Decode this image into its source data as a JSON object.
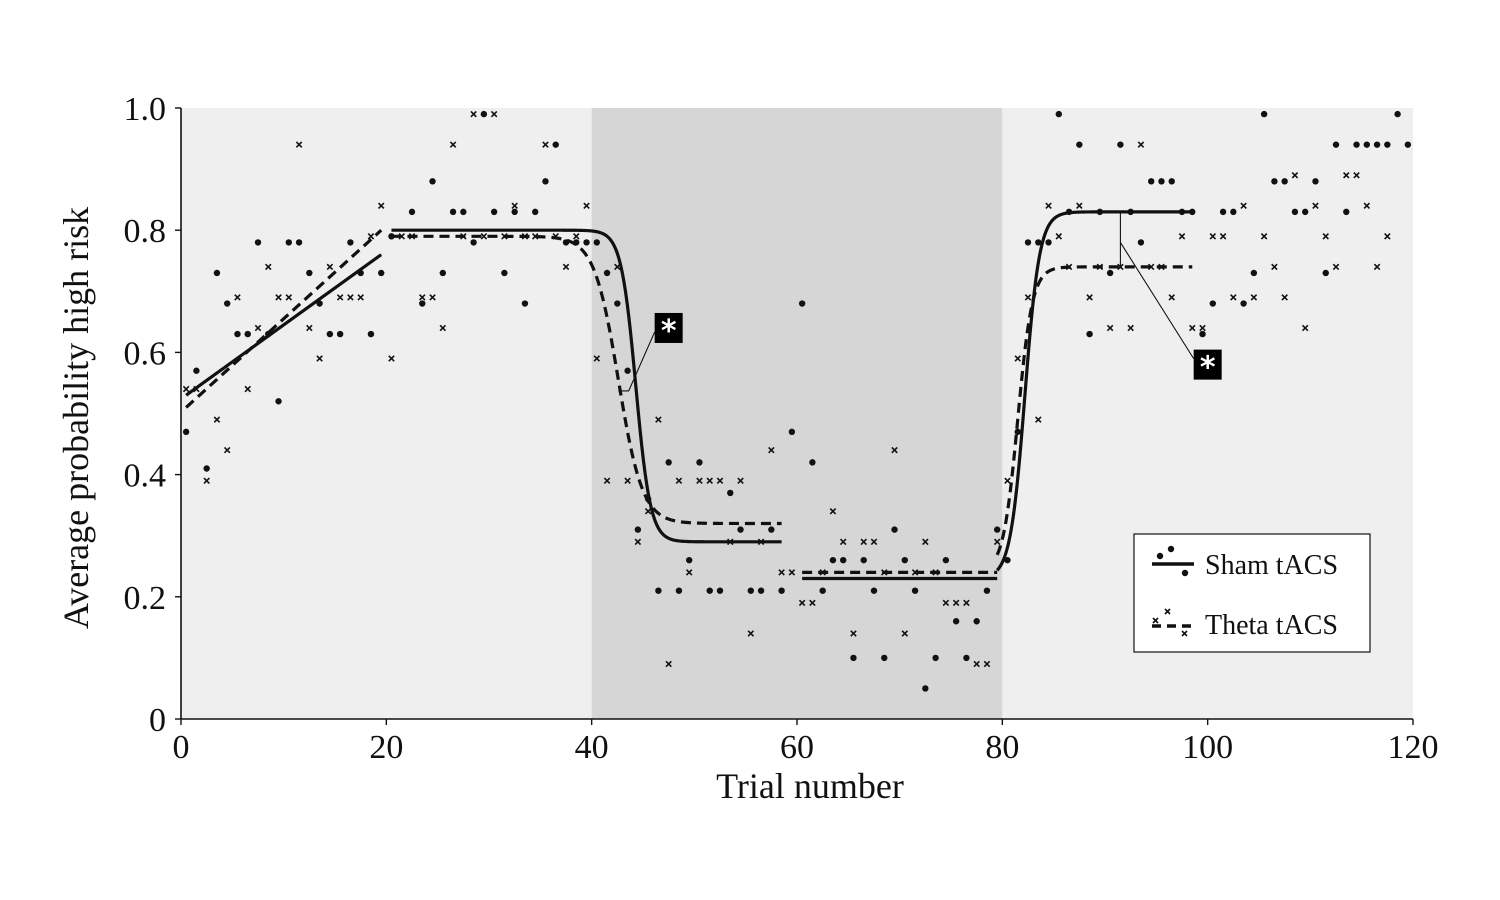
{
  "chart_data": {
    "type": "scatter",
    "title": "",
    "xlabel": "Trial number",
    "ylabel": "Average probability high risk",
    "xlim": [
      0,
      120
    ],
    "ylim": [
      0,
      1
    ],
    "xticks": [
      0,
      20,
      40,
      60,
      80,
      100,
      120
    ],
    "xtick_labels": [
      "0",
      "20",
      "40",
      "60",
      "80",
      "100",
      "120"
    ],
    "yticks": [
      0,
      0.2,
      0.4,
      0.6,
      0.8,
      1.0
    ],
    "ytick_labels": [
      "0",
      "0.2",
      "0.4",
      "0.6",
      "0.8",
      "1.0"
    ],
    "grid": false,
    "legend_position": "bottom-right",
    "shaded_blocks": [
      {
        "x": [
          0,
          40
        ],
        "color": "#efefef"
      },
      {
        "x": [
          40,
          80
        ],
        "color": "#d6d6d6"
      },
      {
        "x": [
          80,
          120
        ],
        "color": "#efefef"
      }
    ],
    "series": [
      {
        "name": "Sham tACS",
        "marker": "dot",
        "line_style": "solid",
        "points": [
          [
            0.5,
            0.47
          ],
          [
            1.5,
            0.57
          ],
          [
            2.5,
            0.41
          ],
          [
            3.5,
            0.73
          ],
          [
            4.5,
            0.68
          ],
          [
            5.5,
            0.63
          ],
          [
            6.5,
            0.63
          ],
          [
            7.5,
            0.78
          ],
          [
            8.5,
            0.63
          ],
          [
            9.5,
            0.52
          ],
          [
            10.5,
            0.78
          ],
          [
            11.5,
            0.78
          ],
          [
            12.5,
            0.73
          ],
          [
            13.5,
            0.68
          ],
          [
            14.5,
            0.63
          ],
          [
            15.5,
            0.63
          ],
          [
            16.5,
            0.78
          ],
          [
            17.5,
            0.73
          ],
          [
            18.5,
            0.63
          ],
          [
            19.5,
            0.73
          ],
          [
            20.5,
            0.79
          ],
          [
            22.5,
            0.83
          ],
          [
            23.5,
            0.68
          ],
          [
            24.5,
            0.88
          ],
          [
            25.5,
            0.73
          ],
          [
            26.5,
            0.83
          ],
          [
            27.5,
            0.83
          ],
          [
            28.5,
            0.78
          ],
          [
            29.5,
            0.99
          ],
          [
            30.5,
            0.83
          ],
          [
            31.5,
            0.73
          ],
          [
            32.5,
            0.83
          ],
          [
            33.5,
            0.68
          ],
          [
            34.5,
            0.83
          ],
          [
            35.5,
            0.88
          ],
          [
            36.5,
            0.94
          ],
          [
            37.5,
            0.78
          ],
          [
            38.5,
            0.78
          ],
          [
            39.5,
            0.78
          ],
          [
            40.5,
            0.78
          ],
          [
            41.5,
            0.73
          ],
          [
            42.5,
            0.68
          ],
          [
            43.5,
            0.57
          ],
          [
            44.5,
            0.31
          ],
          [
            45.5,
            0.36
          ],
          [
            46.5,
            0.21
          ],
          [
            47.5,
            0.42
          ],
          [
            48.5,
            0.21
          ],
          [
            49.5,
            0.26
          ],
          [
            50.5,
            0.42
          ],
          [
            51.5,
            0.21
          ],
          [
            52.5,
            0.21
          ],
          [
            53.5,
            0.37
          ],
          [
            54.5,
            0.31
          ],
          [
            55.5,
            0.21
          ],
          [
            56.5,
            0.21
          ],
          [
            57.5,
            0.31
          ],
          [
            58.5,
            0.21
          ],
          [
            59.5,
            0.47
          ],
          [
            60.5,
            0.68
          ],
          [
            61.5,
            0.42
          ],
          [
            62.5,
            0.21
          ],
          [
            63.5,
            0.26
          ],
          [
            64.5,
            0.26
          ],
          [
            65.5,
            0.1
          ],
          [
            66.5,
            0.26
          ],
          [
            67.5,
            0.21
          ],
          [
            68.5,
            0.1
          ],
          [
            69.5,
            0.31
          ],
          [
            70.5,
            0.26
          ],
          [
            71.5,
            0.21
          ],
          [
            72.5,
            0.05
          ],
          [
            73.5,
            0.1
          ],
          [
            74.5,
            0.26
          ],
          [
            75.5,
            0.16
          ],
          [
            76.5,
            0.1
          ],
          [
            77.5,
            0.16
          ],
          [
            78.5,
            0.21
          ],
          [
            79.5,
            0.31
          ],
          [
            80.5,
            0.26
          ],
          [
            81.5,
            0.47
          ],
          [
            82.5,
            0.78
          ],
          [
            83.5,
            0.78
          ],
          [
            84.5,
            0.78
          ],
          [
            85.5,
            0.99
          ],
          [
            86.5,
            0.83
          ],
          [
            87.5,
            0.94
          ],
          [
            88.5,
            0.63
          ],
          [
            89.5,
            0.83
          ],
          [
            90.5,
            0.73
          ],
          [
            91.5,
            0.94
          ],
          [
            92.5,
            0.83
          ],
          [
            93.5,
            0.78
          ],
          [
            94.5,
            0.88
          ],
          [
            95.5,
            0.88
          ],
          [
            96.5,
            0.88
          ],
          [
            97.5,
            0.83
          ],
          [
            98.5,
            0.83
          ],
          [
            99.5,
            0.63
          ],
          [
            100.5,
            0.68
          ],
          [
            101.5,
            0.83
          ],
          [
            102.5,
            0.83
          ],
          [
            103.5,
            0.68
          ],
          [
            104.5,
            0.73
          ],
          [
            105.5,
            0.99
          ],
          [
            106.5,
            0.88
          ],
          [
            107.5,
            0.88
          ],
          [
            108.5,
            0.83
          ],
          [
            109.5,
            0.83
          ],
          [
            110.5,
            0.88
          ],
          [
            111.5,
            0.73
          ],
          [
            112.5,
            0.94
          ],
          [
            113.5,
            0.83
          ],
          [
            114.5,
            0.94
          ],
          [
            115.5,
            0.94
          ],
          [
            116.5,
            0.94
          ],
          [
            117.5,
            0.94
          ],
          [
            118.5,
            0.99
          ],
          [
            119.5,
            0.94
          ]
        ],
        "fit_segments": [
          {
            "x_start": 0.5,
            "x_end": 19.5,
            "kind": "linear",
            "y_start": 0.53,
            "y_end": 0.76
          },
          {
            "x_start": 20.5,
            "x_end": 58.5,
            "kind": "sigmoid",
            "high": 0.8,
            "low": 0.29,
            "midpoint": 44.3,
            "slope": 1.4
          },
          {
            "x_start": 60.5,
            "x_end": 79.5,
            "kind": "linear",
            "y_start": 0.23,
            "y_end": 0.23
          },
          {
            "x_start": 79.5,
            "x_end": 98.5,
            "kind": "sigmoid",
            "high": 0.83,
            "low": 0.23,
            "midpoint": 82.2,
            "slope": 1.4
          }
        ]
      },
      {
        "name": "Theta tACS",
        "marker": "cross",
        "line_style": "dashed",
        "points": [
          [
            0.5,
            0.54
          ],
          [
            1.5,
            0.54
          ],
          [
            2.5,
            0.39
          ],
          [
            3.5,
            0.49
          ],
          [
            4.5,
            0.44
          ],
          [
            5.5,
            0.69
          ],
          [
            6.5,
            0.54
          ],
          [
            7.5,
            0.64
          ],
          [
            8.5,
            0.74
          ],
          [
            9.5,
            0.69
          ],
          [
            10.5,
            0.69
          ],
          [
            11.5,
            0.94
          ],
          [
            12.5,
            0.64
          ],
          [
            13.5,
            0.59
          ],
          [
            14.5,
            0.74
          ],
          [
            15.5,
            0.69
          ],
          [
            16.5,
            0.69
          ],
          [
            17.5,
            0.69
          ],
          [
            18.5,
            0.79
          ],
          [
            19.5,
            0.84
          ],
          [
            20.5,
            0.59
          ],
          [
            21.5,
            0.79
          ],
          [
            22.5,
            0.79
          ],
          [
            23.5,
            0.69
          ],
          [
            24.5,
            0.69
          ],
          [
            25.5,
            0.64
          ],
          [
            26.5,
            0.94
          ],
          [
            27.5,
            0.79
          ],
          [
            28.5,
            0.99
          ],
          [
            29.5,
            0.79
          ],
          [
            30.5,
            0.99
          ],
          [
            31.5,
            0.79
          ],
          [
            32.5,
            0.84
          ],
          [
            33.5,
            0.79
          ],
          [
            34.5,
            0.79
          ],
          [
            35.5,
            0.94
          ],
          [
            36.5,
            0.79
          ],
          [
            37.5,
            0.74
          ],
          [
            38.5,
            0.79
          ],
          [
            39.5,
            0.84
          ],
          [
            40.5,
            0.59
          ],
          [
            41.5,
            0.39
          ],
          [
            42.5,
            0.74
          ],
          [
            43.5,
            0.39
          ],
          [
            44.5,
            0.29
          ],
          [
            45.5,
            0.34
          ],
          [
            46.5,
            0.49
          ],
          [
            47.5,
            0.09
          ],
          [
            48.5,
            0.39
          ],
          [
            49.5,
            0.24
          ],
          [
            50.5,
            0.39
          ],
          [
            51.5,
            0.39
          ],
          [
            52.5,
            0.39
          ],
          [
            53.5,
            0.29
          ],
          [
            54.5,
            0.39
          ],
          [
            55.5,
            0.14
          ],
          [
            56.5,
            0.29
          ],
          [
            57.5,
            0.44
          ],
          [
            58.5,
            0.24
          ],
          [
            59.5,
            0.24
          ],
          [
            60.5,
            0.19
          ],
          [
            61.5,
            0.19
          ],
          [
            62.5,
            0.24
          ],
          [
            63.5,
            0.34
          ],
          [
            64.5,
            0.29
          ],
          [
            65.5,
            0.14
          ],
          [
            66.5,
            0.29
          ],
          [
            67.5,
            0.29
          ],
          [
            68.5,
            0.24
          ],
          [
            69.5,
            0.44
          ],
          [
            70.5,
            0.14
          ],
          [
            71.5,
            0.24
          ],
          [
            72.5,
            0.29
          ],
          [
            73.5,
            0.24
          ],
          [
            74.5,
            0.19
          ],
          [
            75.5,
            0.19
          ],
          [
            76.5,
            0.19
          ],
          [
            77.5,
            0.09
          ],
          [
            78.5,
            0.09
          ],
          [
            79.5,
            0.29
          ],
          [
            80.5,
            0.39
          ],
          [
            81.5,
            0.59
          ],
          [
            82.5,
            0.69
          ],
          [
            83.5,
            0.49
          ],
          [
            84.5,
            0.84
          ],
          [
            85.5,
            0.79
          ],
          [
            86.5,
            0.74
          ],
          [
            87.5,
            0.84
          ],
          [
            88.5,
            0.69
          ],
          [
            89.5,
            0.74
          ],
          [
            90.5,
            0.64
          ],
          [
            91.5,
            0.74
          ],
          [
            92.5,
            0.64
          ],
          [
            93.5,
            0.94
          ],
          [
            94.5,
            0.74
          ],
          [
            95.5,
            0.74
          ],
          [
            96.5,
            0.69
          ],
          [
            97.5,
            0.79
          ],
          [
            98.5,
            0.64
          ],
          [
            99.5,
            0.64
          ],
          [
            100.5,
            0.79
          ],
          [
            101.5,
            0.79
          ],
          [
            102.5,
            0.69
          ],
          [
            103.5,
            0.84
          ],
          [
            104.5,
            0.69
          ],
          [
            105.5,
            0.79
          ],
          [
            106.5,
            0.74
          ],
          [
            107.5,
            0.69
          ],
          [
            108.5,
            0.89
          ],
          [
            109.5,
            0.64
          ],
          [
            110.5,
            0.84
          ],
          [
            111.5,
            0.79
          ],
          [
            112.5,
            0.74
          ],
          [
            113.5,
            0.89
          ],
          [
            114.5,
            0.89
          ],
          [
            115.5,
            0.84
          ],
          [
            116.5,
            0.74
          ],
          [
            117.5,
            0.79
          ]
        ],
        "fit_segments": [
          {
            "x_start": 0.5,
            "x_end": 19.5,
            "kind": "linear",
            "y_start": 0.51,
            "y_end": 0.8
          },
          {
            "x_start": 20.5,
            "x_end": 58.5,
            "kind": "sigmoid",
            "high": 0.79,
            "low": 0.32,
            "midpoint": 42.6,
            "slope": 0.85
          },
          {
            "x_start": 60.5,
            "x_end": 79.5,
            "kind": "linear",
            "y_start": 0.24,
            "y_end": 0.24
          },
          {
            "x_start": 79.5,
            "x_end": 98.5,
            "kind": "sigmoid",
            "high": 0.74,
            "low": 0.24,
            "midpoint": 81.5,
            "slope": 1.4
          }
        ]
      }
    ],
    "annotations": [
      {
        "label": "*",
        "text_at": [
          47.5,
          0.64
        ],
        "points_to": [
          42.6,
          0.55
        ]
      },
      {
        "label": "*",
        "text_at": [
          100,
          0.58
        ],
        "points_to": [
          91.5,
          0.78
        ]
      }
    ]
  }
}
